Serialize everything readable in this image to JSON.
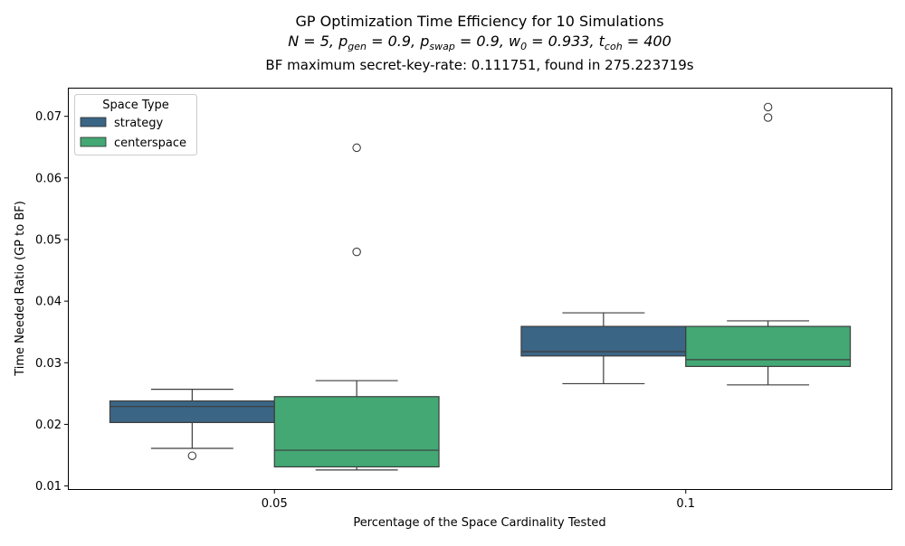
{
  "chart_data": {
    "type": "box",
    "title_lines": [
      "GP Optimization Time Efficiency for 10 Simulations",
      "N = 5, p_gen = 0.9, p_swap = 0.9, w_0 = 0.933, t_coh = 400"
    ],
    "title_formula": {
      "prefix": "N = 5, p",
      "gen_sub": "gen",
      "mid1": " = 0.9, p",
      "swap_sub": "swap",
      "mid2": " = 0.9, w",
      "w_sub": "0",
      "mid3": " = 0.933, t",
      "t_sub": "coh",
      "suffix": " = 400"
    },
    "subtitle": "BF maximum secret-key-rate: 0.111751, found in 275.223719s",
    "xlabel": "Percentage of the Space Cardinality Tested",
    "ylabel": "Time Needed Ratio (GP to BF)",
    "categories": [
      "0.05",
      "0.1"
    ],
    "ylim": [
      0.0095,
      0.0745
    ],
    "yticks": [
      0.01,
      0.02,
      0.03,
      0.04,
      0.05,
      0.06,
      0.07
    ],
    "ytick_labels": [
      "0.01",
      "0.02",
      "0.03",
      "0.04",
      "0.05",
      "0.06",
      "0.07"
    ],
    "legend": {
      "title": "Space Type",
      "position": "upper-left"
    },
    "series": [
      {
        "name": "strategy",
        "color": "#3b6585",
        "boxes": [
          {
            "q1": 0.0203,
            "median": 0.0229,
            "q3": 0.0238,
            "whisker_low": 0.0161,
            "whisker_high": 0.0257,
            "outliers": [
              0.0149
            ]
          },
          {
            "q1": 0.0311,
            "median": 0.0318,
            "q3": 0.0359,
            "whisker_low": 0.0266,
            "whisker_high": 0.0381,
            "outliers": []
          }
        ]
      },
      {
        "name": "centerspace",
        "color": "#43a874",
        "boxes": [
          {
            "q1": 0.0131,
            "median": 0.0158,
            "q3": 0.0245,
            "whisker_low": 0.0126,
            "whisker_high": 0.0271,
            "outliers": [
              0.048,
              0.0649
            ]
          },
          {
            "q1": 0.0294,
            "median": 0.0305,
            "q3": 0.0359,
            "whisker_low": 0.0264,
            "whisker_high": 0.0368,
            "outliers": [
              0.0698,
              0.0715
            ]
          }
        ]
      }
    ]
  }
}
